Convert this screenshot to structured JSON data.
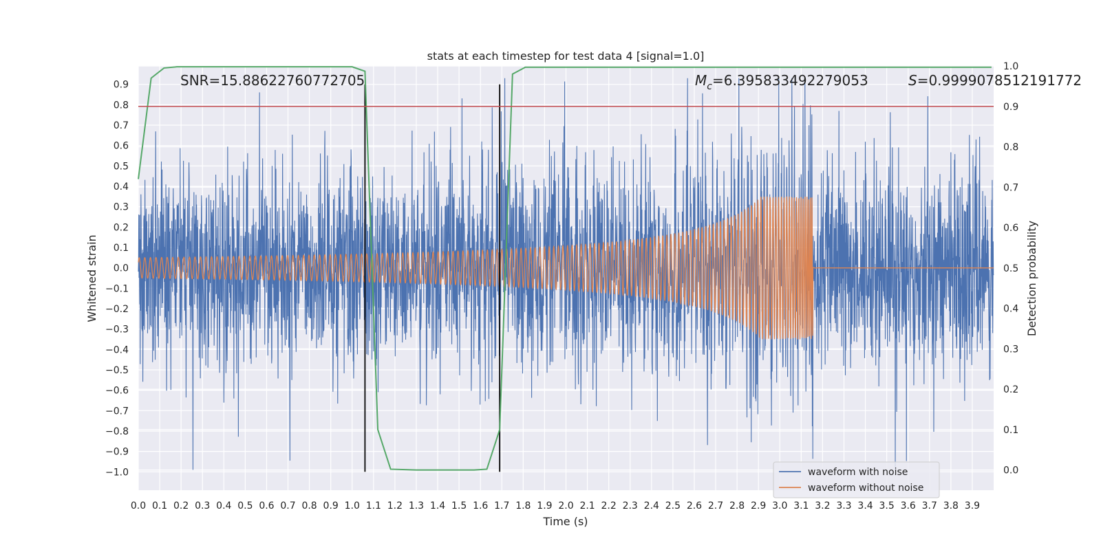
{
  "chart_data": {
    "type": "line",
    "title": "stats at each timestep for test data 4 [signal=1.0]",
    "xlabel": "Time (s)",
    "ylabel_left": "Whitened strain",
    "ylabel_right": "Detection probability",
    "xlim": [
      0.0,
      4.0
    ],
    "ylim_left": [
      -1.09,
      0.99
    ],
    "ylim_right": [
      -0.05,
      1.0
    ],
    "x_ticks": [
      "0.0",
      "0.1",
      "0.2",
      "0.3",
      "0.4",
      "0.5",
      "0.6",
      "0.7",
      "0.8",
      "0.9",
      "1.0",
      "1.1",
      "1.2",
      "1.3",
      "1.4",
      "1.5",
      "1.6",
      "1.7",
      "1.8",
      "1.9",
      "2.0",
      "2.1",
      "2.2",
      "2.3",
      "2.4",
      "2.5",
      "2.6",
      "2.7",
      "2.8",
      "2.9",
      "3.0",
      "3.1",
      "3.2",
      "3.3",
      "3.4",
      "3.5",
      "3.6",
      "3.7",
      "3.8",
      "3.9"
    ],
    "y_ticks_left": [
      "0.9",
      "0.8",
      "0.7",
      "0.6",
      "0.5",
      "0.4",
      "0.3",
      "0.2",
      "0.1",
      "0.0",
      "−0.1",
      "−0.2",
      "−0.3",
      "−0.4",
      "−0.5",
      "−0.6",
      "−0.7",
      "−0.8",
      "−0.9",
      "−1.0"
    ],
    "y_ticks_right": [
      "1.0",
      "0.9",
      "0.8",
      "0.7",
      "0.6",
      "0.5",
      "0.4",
      "0.3",
      "0.2",
      "0.1",
      "0.0"
    ],
    "threshold": {
      "value": 0.9,
      "color": "#c44e52"
    },
    "vertical_markers": [
      1.06,
      1.69
    ],
    "annotations": {
      "snr": "SNR=15.88622760772705",
      "mc_symbol": "M",
      "mc_sub": "c",
      "mc_value": "=6.395833492279053",
      "s_symbol": "S",
      "s_value": "=0.9999078512191772"
    },
    "series": [
      {
        "name": "waveform with noise",
        "axis": "left",
        "color": "#4c72b0",
        "description": "whitened strain with noise, amplitude roughly within ±0.6 with spikes to ±0.9"
      },
      {
        "name": "waveform without noise",
        "axis": "left",
        "color": "#dd8452",
        "description": "chirp signal growing from ±0.05 to ±0.35 at 3.15 s, then ~0"
      },
      {
        "name": "Detection probability",
        "axis": "right",
        "color": "#55a868",
        "x": [
          0.0,
          0.06,
          0.12,
          0.18,
          0.24,
          0.3,
          0.5,
          0.8,
          1.0,
          1.06,
          1.12,
          1.18,
          1.3,
          1.45,
          1.57,
          1.63,
          1.69,
          1.75,
          1.81,
          1.9,
          2.5,
          3.0,
          3.5,
          3.99
        ],
        "values": [
          0.72,
          0.97,
          0.995,
          0.998,
          0.998,
          0.998,
          0.998,
          0.998,
          0.998,
          0.987,
          0.1,
          0.002,
          0.0,
          0.0,
          0.0,
          0.002,
          0.1,
          0.98,
          0.997,
          0.997,
          0.997,
          0.997,
          0.997,
          0.997
        ]
      }
    ],
    "legend": {
      "position": "lower-right",
      "entries": [
        {
          "label": "waveform with noise",
          "color": "#4c72b0"
        },
        {
          "label": "waveform without noise",
          "color": "#dd8452"
        }
      ]
    },
    "style": {
      "background": "#eaeaf2",
      "grid": "#ffffff",
      "marker_color": "#000000"
    }
  }
}
